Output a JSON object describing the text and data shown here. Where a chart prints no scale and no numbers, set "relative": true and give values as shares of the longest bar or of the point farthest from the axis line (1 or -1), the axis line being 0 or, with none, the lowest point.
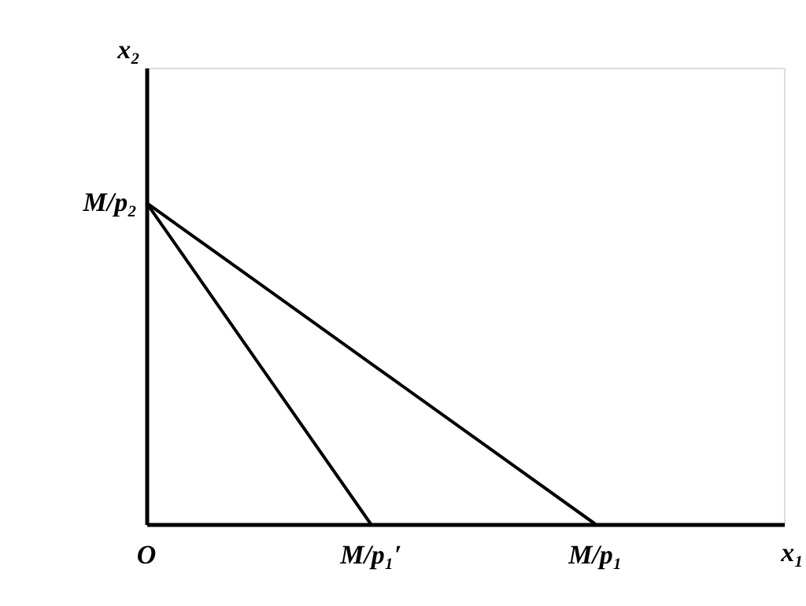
{
  "chart_data": {
    "type": "line",
    "xlabel": "x₁",
    "relative": true,
    "categories": [
      null,
      null,
      null,
      null,
      null,
      null
    ],
    "series": [
      {
        "color": "#000000",
        "values": [
          1,
          0.5,
          0,
          null,
          null,
          null
        ]
      },
      {
        "color": "#000000",
        "values": [
          1,
          0.75,
          0.5,
          0.25,
          0,
          null
        ]
      }
    ],
    "annotations": [
      "O",
      "M/p₁′",
      "M/p₁",
      "M/p₂",
      "x₂"
    ],
    "legend": false,
    "marker": "none",
    "line_style": "solid"
  }
}
